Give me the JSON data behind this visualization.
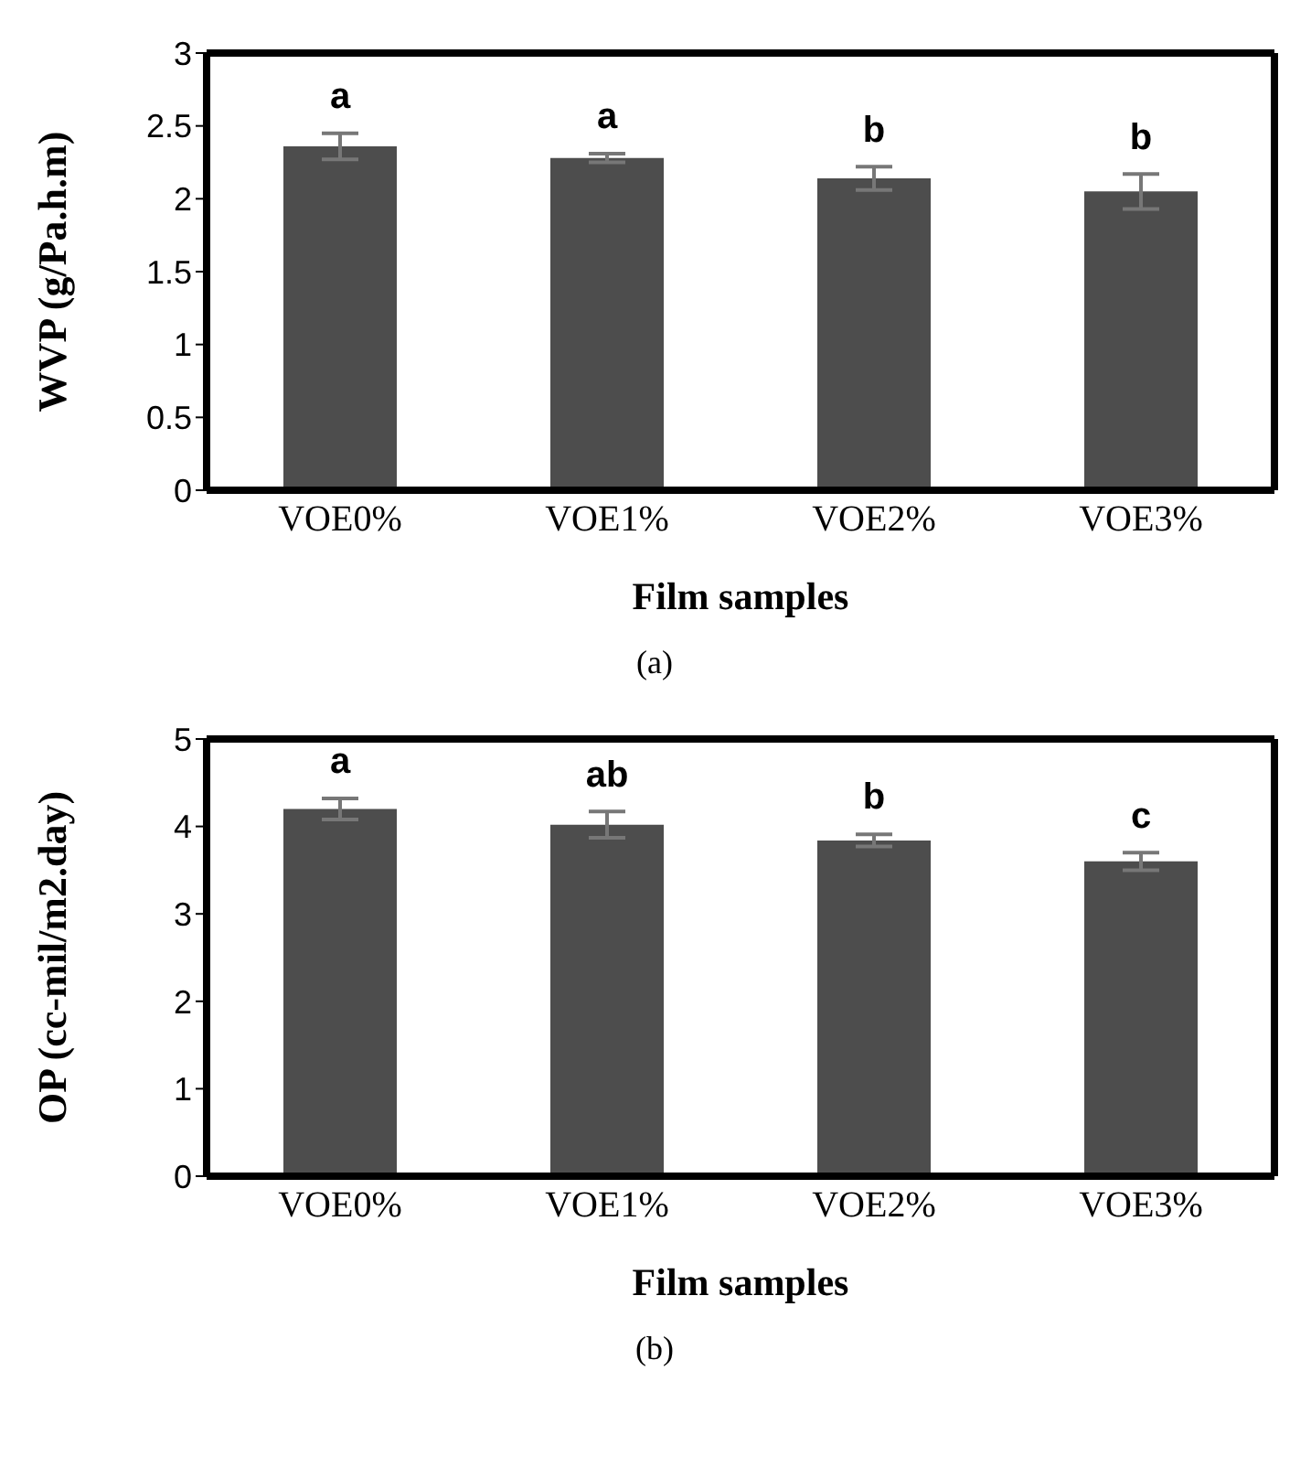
{
  "chart_data": [
    {
      "type": "bar",
      "xlabel": "Film samples",
      "ylabel": "WVP (g/Pa.h.m)",
      "categories": [
        "VOE0%",
        "VOE1%",
        "VOE2%",
        "VOE3%"
      ],
      "values": [
        2.36,
        2.28,
        2.14,
        2.05
      ],
      "errors": [
        0.09,
        0.03,
        0.08,
        0.12
      ],
      "color": "#4d4d4d",
      "ylim": [
        0,
        3
      ],
      "yticks": [
        0,
        0.5,
        1,
        1.5,
        2,
        2.5,
        3
      ],
      "grid": false,
      "annotations": [
        {
          "text": "a",
          "x": "VOE0%",
          "y": 2.36
        },
        {
          "text": "a",
          "x": "VOE1%",
          "y": 2.28
        },
        {
          "text": "b",
          "x": "VOE2%",
          "y": 2.14
        },
        {
          "text": "b",
          "x": "VOE3%",
          "y": 2.05
        },
        "(a)"
      ]
    },
    {
      "type": "bar",
      "xlabel": "Film samples",
      "ylabel": "OP (cc-mil/m2.day)",
      "categories": [
        "VOE0%",
        "VOE1%",
        "VOE2%",
        "VOE3%"
      ],
      "values": [
        4.2,
        4.02,
        3.84,
        3.6
      ],
      "errors": [
        0.12,
        0.15,
        0.07,
        0.1
      ],
      "color": "#4d4d4d",
      "ylim": [
        0,
        5
      ],
      "yticks": [
        0,
        1,
        2,
        3,
        4,
        5
      ],
      "grid": false,
      "annotations": [
        {
          "text": "a",
          "x": "VOE0%",
          "y": 4.2
        },
        {
          "text": "ab",
          "x": "VOE1%",
          "y": 4.02
        },
        {
          "text": "b",
          "x": "VOE2%",
          "y": 3.84
        },
        {
          "text": "c",
          "x": "VOE3%",
          "y": 3.6
        },
        "(b)"
      ]
    }
  ]
}
